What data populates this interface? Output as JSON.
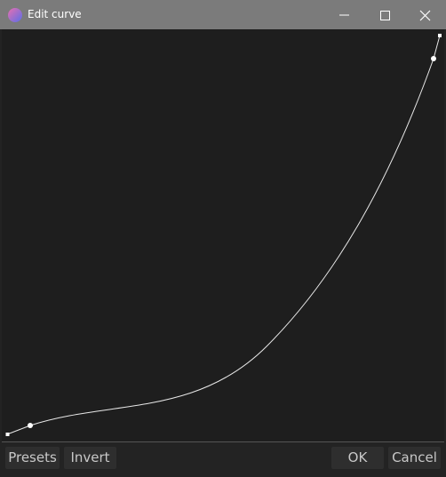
{
  "window": {
    "title": "Edit curve"
  },
  "buttons": {
    "presets": "Presets",
    "invert": "Invert",
    "ok": "OK",
    "cancel": "Cancel"
  }
}
